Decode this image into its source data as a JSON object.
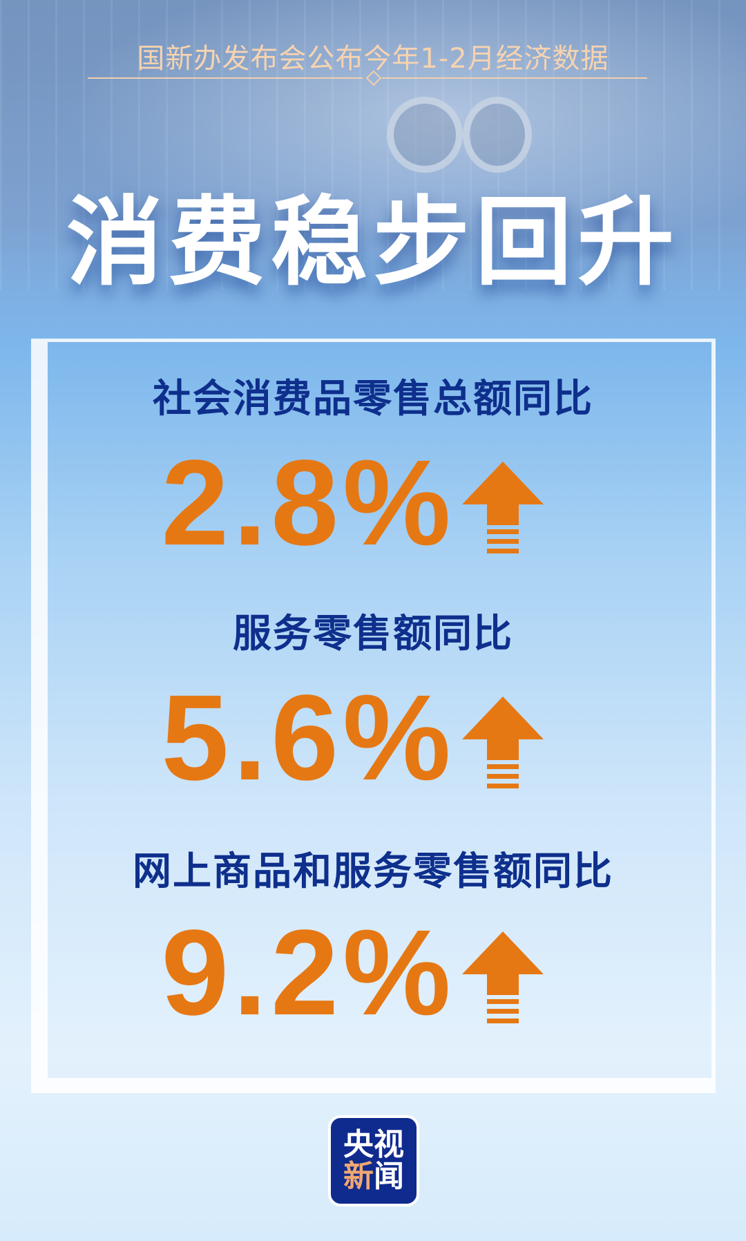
{
  "header": {
    "subtitle": "国新办发布会公布今年1-2月经济数据",
    "title": "消费稳步回升"
  },
  "stats": [
    {
      "label": "社会消费品零售总额同比",
      "value": "2.8%",
      "trend": "up-arrow-icon"
    },
    {
      "label": "服务零售额同比",
      "value": "5.6%",
      "trend": "up-arrow-icon"
    },
    {
      "label": "网上商品和服务零售额同比",
      "value": "9.2%",
      "trend": "up-arrow-icon"
    }
  ],
  "logo": {
    "line1": "央视",
    "line2_a": "新",
    "line2_b": "闻"
  },
  "colors": {
    "heading": "#0e2f8c",
    "value": "#e67814",
    "subtitle": "#f6d3b0",
    "logo_bg": "#102b8e"
  }
}
